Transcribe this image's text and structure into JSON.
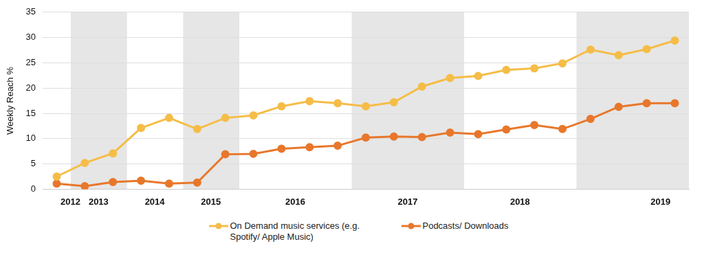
{
  "chart_data": {
    "type": "line",
    "categories": [
      "2012",
      "2013",
      null,
      "2014",
      null,
      "2015",
      null,
      null,
      "2016",
      null,
      null,
      null,
      "2017",
      null,
      null,
      null,
      "2018",
      null,
      null,
      null,
      null,
      "2019",
      null
    ],
    "series": [
      {
        "name": "On Demand music services (e.g. Spotify/ Apple Music)",
        "color": "#f5bd47",
        "marker": "circle",
        "values": [
          2.5,
          5.2,
          7.1,
          12.1,
          14.1,
          11.9,
          14.1,
          14.6,
          16.4,
          17.4,
          17.0,
          16.4,
          17.2,
          20.3,
          22.0,
          22.4,
          23.6,
          23.9,
          24.9,
          27.6,
          26.5,
          27.7,
          29.4
        ]
      },
      {
        "name": "Podcasts/ Downloads",
        "color": "#e8772b",
        "marker": "circle",
        "values": [
          1.1,
          0.6,
          1.4,
          1.7,
          1.1,
          1.3,
          6.9,
          7.0,
          8.0,
          8.3,
          8.6,
          10.2,
          10.4,
          10.3,
          11.2,
          10.9,
          11.8,
          12.7,
          11.9,
          13.9,
          16.3,
          17.0,
          17.0
        ]
      }
    ],
    "y_label": "Weekly Reach %",
    "ylim": [
      0,
      35
    ],
    "yticks": [
      0,
      5,
      10,
      15,
      20,
      25,
      30,
      35
    ],
    "grid": true,
    "legend": "bottom"
  }
}
